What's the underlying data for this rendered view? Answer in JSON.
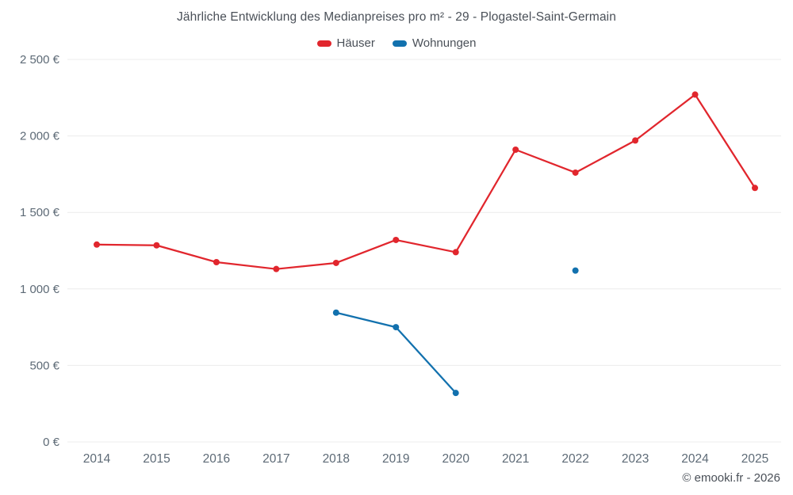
{
  "header": {
    "title": "Jährliche Entwicklung des Medianpreises pro m² - 29 - Plogastel-Saint-Germain"
  },
  "legend": [
    {
      "label": "Häuser",
      "color": "#e1262d"
    },
    {
      "label": "Wohnungen",
      "color": "#1271ae"
    }
  ],
  "footer": {
    "copyright": "© emooki.fr - 2026"
  },
  "chart_data": {
    "type": "line",
    "title": "Jährliche Entwicklung des Medianpreises pro m² - 29 - Plogastel-Saint-Germain",
    "categories": [
      "2014",
      "2015",
      "2016",
      "2017",
      "2018",
      "2019",
      "2020",
      "2021",
      "2022",
      "2023",
      "2024",
      "2025"
    ],
    "series": [
      {
        "name": "Häuser",
        "color": "#e1262d",
        "values": [
          1290,
          1285,
          1175,
          1130,
          1170,
          1320,
          1240,
          1910,
          1760,
          1970,
          2270,
          1660
        ]
      },
      {
        "name": "Wohnungen",
        "color": "#1271ae",
        "values": [
          null,
          null,
          null,
          null,
          845,
          750,
          320,
          null,
          1120,
          null,
          null,
          null
        ]
      }
    ],
    "xlabel": "",
    "ylabel": "",
    "ylim": [
      0,
      2500
    ],
    "grid": true,
    "legend_position": "top",
    "y_ticks": [
      {
        "value": 0,
        "label": "0 €"
      },
      {
        "value": 500,
        "label": "500 €"
      },
      {
        "value": 1000,
        "label": "1 000 €"
      },
      {
        "value": 1500,
        "label": "1 500 €"
      },
      {
        "value": 2000,
        "label": "2 000 €"
      },
      {
        "value": 2500,
        "label": "2 500 €"
      }
    ]
  }
}
